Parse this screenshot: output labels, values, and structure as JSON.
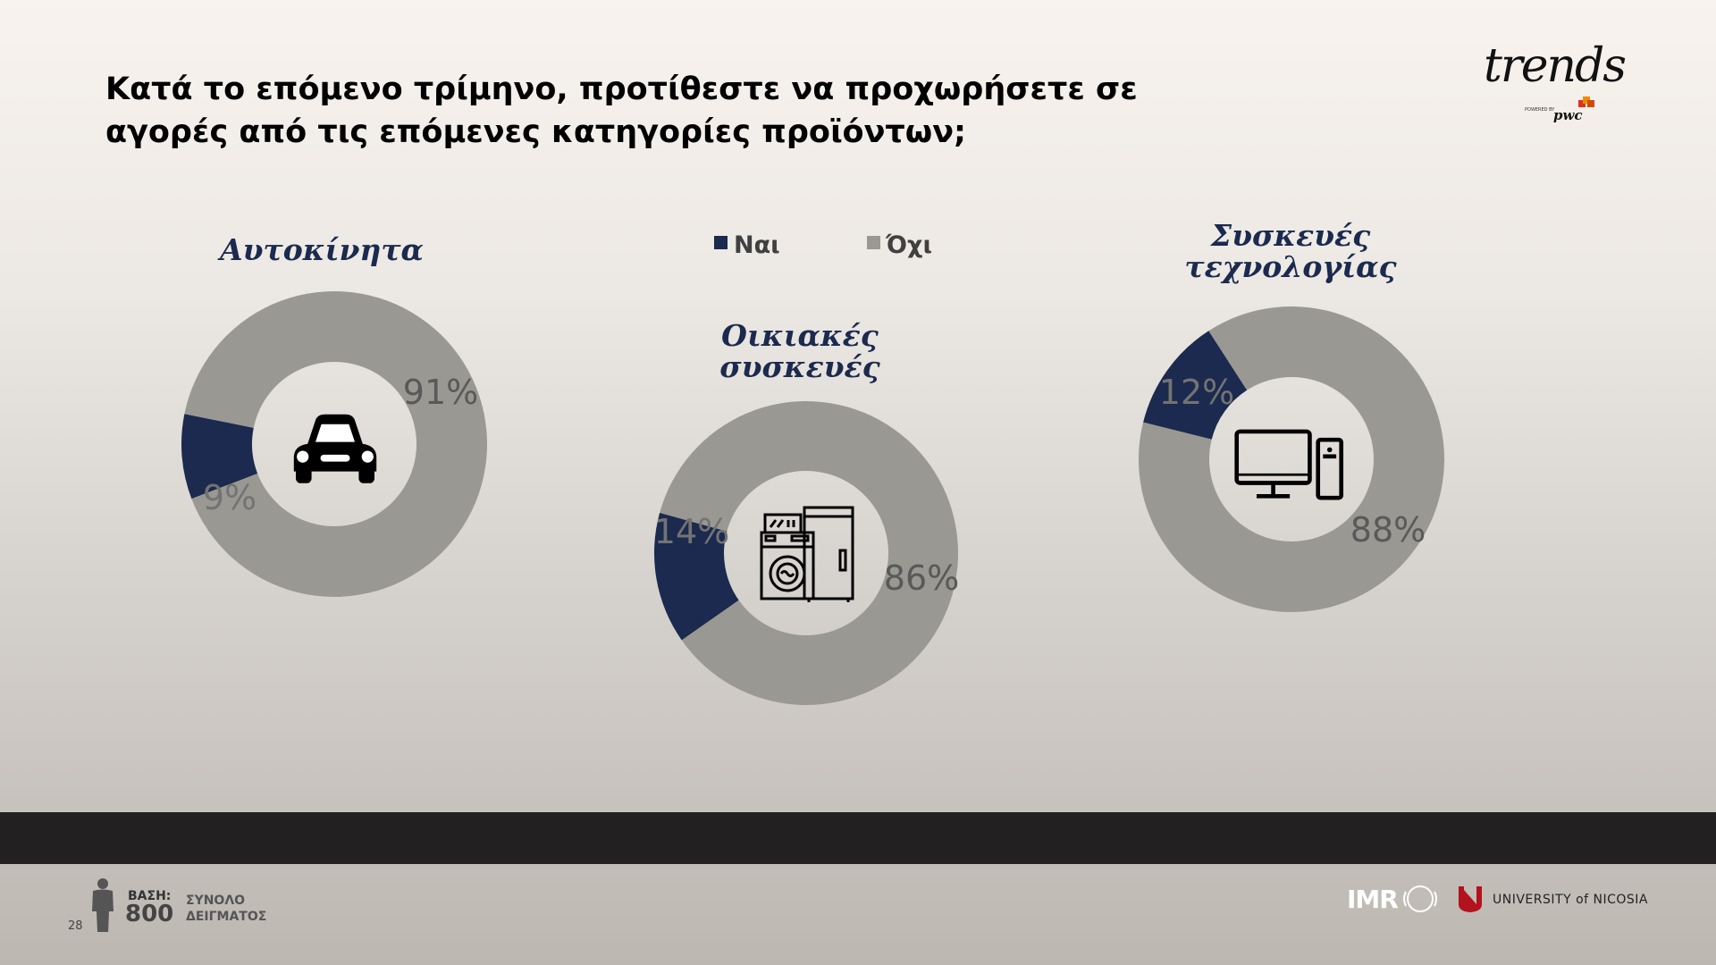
{
  "header": {
    "question": "Κατά το επόμενο τρίμηνο, προτίθεστε να προχωρήσετε σε αγορές από τις επόμενες κατηγορίες προϊόντων;",
    "brand_name": "trends",
    "brand_powered_by": "POWERED BY",
    "brand_partner": "pwc"
  },
  "legend": {
    "yes": "Ναι",
    "no": "Όχι"
  },
  "colors": {
    "yes": "#1b2a4e",
    "no": "#999893",
    "title": "#1b2a4e"
  },
  "chart_data": [
    {
      "type": "pie",
      "variant": "donut",
      "title": "Αυτοκίνητα",
      "icon": "car-icon",
      "series": [
        {
          "name": "Ναι",
          "value": 9
        },
        {
          "name": "Όχι",
          "value": 91
        }
      ],
      "labels": [
        "9%",
        "91%"
      ]
    },
    {
      "type": "pie",
      "variant": "donut",
      "title_lines": [
        "Οικιακές",
        "συσκευές"
      ],
      "icon": "washing-machine-fridge-icon",
      "series": [
        {
          "name": "Ναι",
          "value": 14
        },
        {
          "name": "Όχι",
          "value": 86
        }
      ],
      "labels": [
        "14%",
        "86%"
      ]
    },
    {
      "type": "pie",
      "variant": "donut",
      "title_lines": [
        "Συσκευές",
        "τεχνολογίας"
      ],
      "icon": "desktop-computer-icon",
      "series": [
        {
          "name": "Ναι",
          "value": 12
        },
        {
          "name": "Όχι",
          "value": 88
        }
      ],
      "labels": [
        "12%",
        "88%"
      ]
    }
  ],
  "footer": {
    "base_label": "ΒΑΣΗ:",
    "base_value": "800",
    "base_desc_line1": "ΣΥΝΟΛΟ",
    "base_desc_line2": "ΔΕΙΓΜΑΤΟΣ",
    "page_number": "28",
    "imr_name": "IMR",
    "university": "UNIVERSITY of NICOSIA"
  }
}
